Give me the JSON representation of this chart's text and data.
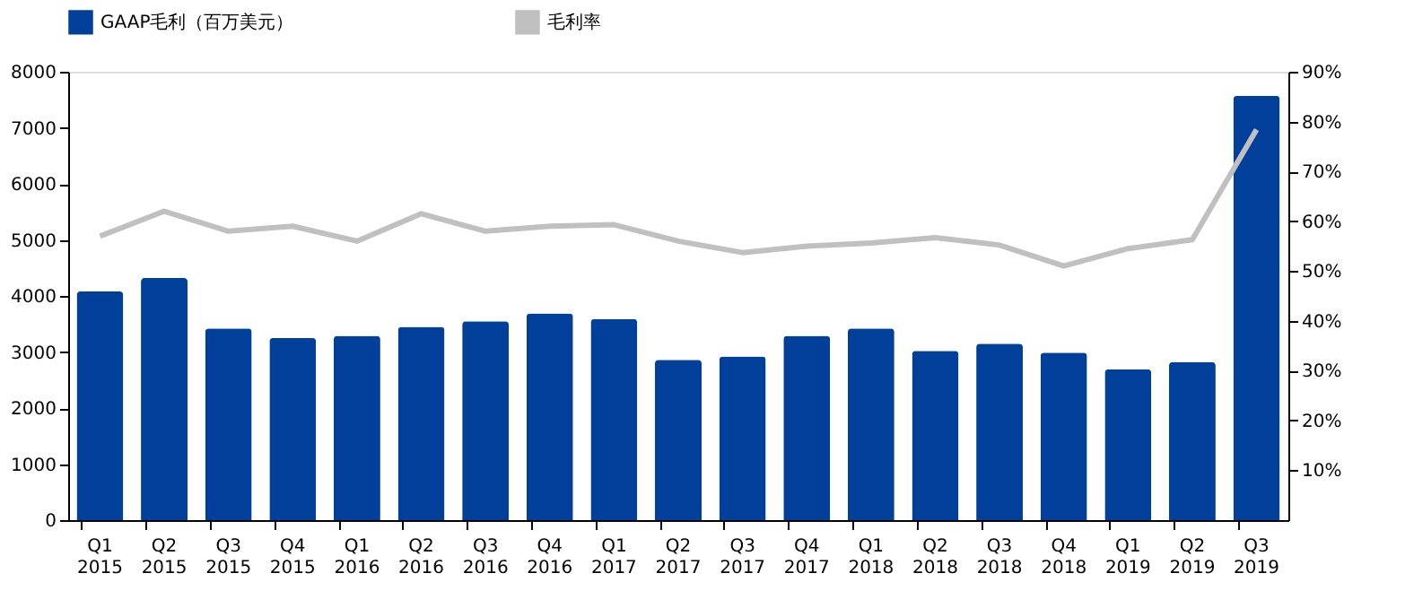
{
  "chart_data": {
    "type": "bar",
    "categories": [
      "Q1 2015",
      "Q2 2015",
      "Q3 2015",
      "Q4 2015",
      "Q1 2016",
      "Q2 2016",
      "Q3 2016",
      "Q4 2016",
      "Q1 2017",
      "Q2 2017",
      "Q3 2017",
      "Q4 2017",
      "Q1 2018",
      "Q2 2018",
      "Q3 2018",
      "Q4 2018",
      "Q1 2019",
      "Q2 2019",
      "Q3 2019"
    ],
    "series": [
      {
        "name": "GAAP毛利（百万美元）",
        "color": "#00409a",
        "values": [
          4080,
          4320,
          3420,
          3250,
          3290,
          3450,
          3550,
          3690,
          3590,
          2860,
          2920,
          3290,
          3420,
          3020,
          3150,
          2990,
          2690,
          2820,
          7570
        ]
      },
      {
        "name": "毛利率",
        "type": "line",
        "axis": "y2",
        "color": "#c0c0c0",
        "values": [
          57,
          62,
          58,
          59,
          56,
          61.5,
          58,
          59,
          59.3,
          56,
          53.7,
          55,
          55.6,
          56.7,
          55.2,
          51,
          54.5,
          56.3,
          78.4
        ]
      }
    ],
    "ylim": [
      0,
      8000
    ],
    "yticks": [
      0,
      1000,
      2000,
      3000,
      4000,
      5000,
      6000,
      7000,
      8000
    ],
    "y2lim": [
      0,
      90
    ],
    "y2ticks": [
      {
        "value": 10,
        "label": "10%"
      },
      {
        "value": 20,
        "label": "20%"
      },
      {
        "value": 30,
        "label": "30%"
      },
      {
        "value": 40,
        "label": "40%"
      },
      {
        "value": 50,
        "label": "50%"
      },
      {
        "value": 60,
        "label": "60%"
      },
      {
        "value": 70,
        "label": "70%"
      },
      {
        "value": 80,
        "label": "80%"
      },
      {
        "value": 90,
        "label": "90%"
      }
    ],
    "grid": false,
    "legend": "top",
    "line_style": "solid",
    "marker": "none"
  }
}
